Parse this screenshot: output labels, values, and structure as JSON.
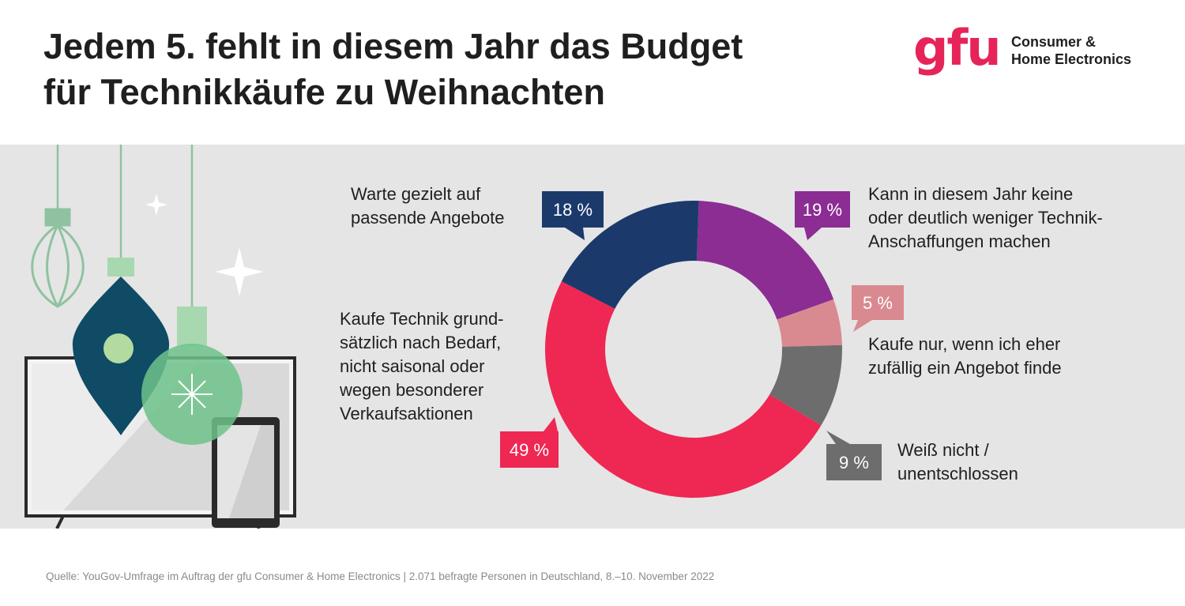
{
  "header": {
    "title_line1": "Jedem 5. fehlt in diesem Jahr das Budget",
    "title_line2": "für Technikkäufe zu Weihnachten"
  },
  "logo": {
    "mark": "gfu",
    "line1": "Consumer &",
    "line2": "Home Electronics",
    "color": "#e6245a"
  },
  "chart_data": {
    "type": "pie",
    "donut": true,
    "categories": [
      "Kann in diesem Jahr keine oder deutlich weniger Technik-Anschaffungen machen",
      "Kaufe nur, wenn ich eher zufällig ein Angebot finde",
      "Weiß nicht / unentschlossen",
      "Kaufe Technik grundsätzlich nach Bedarf, nicht saisonal oder wegen besonderer Verkaufsaktionen",
      "Warte gezielt auf passende Angebote"
    ],
    "values": [
      19,
      5,
      9,
      49,
      18
    ],
    "value_labels": [
      "19 %",
      "5 %",
      "9 %",
      "49 %",
      "18 %"
    ],
    "colors": [
      "#8b2d93",
      "#d98a90",
      "#6d6d6d",
      "#ee2753",
      "#1b3a6b"
    ],
    "label_lines": [
      [
        "Kann in diesem Jahr keine",
        "oder deutlich weniger Technik-",
        "Anschaffungen machen"
      ],
      [
        "Kaufe nur, wenn ich eher",
        "zufällig ein Angebot finde"
      ],
      [
        "Weiß nicht /",
        "unentschlossen"
      ],
      [
        "Kaufe Technik grund-",
        "sätzlich nach Bedarf,",
        "nicht saisonal oder",
        "wegen besonderer",
        "Verkaufsaktionen"
      ],
      [
        "Warte gezielt auf",
        "passende Angebote"
      ]
    ],
    "unit": "%"
  },
  "footer": {
    "source": "Quelle: YouGov-Umfrage im Auftrag der gfu Consumer & Home Electronics | 2.071 befragte Personen in Deutschland, 8.–10. November 2022"
  },
  "illustration": {
    "icons": [
      "christmas-ornament-icon",
      "tv-icon",
      "tablet-icon",
      "sparkle-icon"
    ]
  }
}
